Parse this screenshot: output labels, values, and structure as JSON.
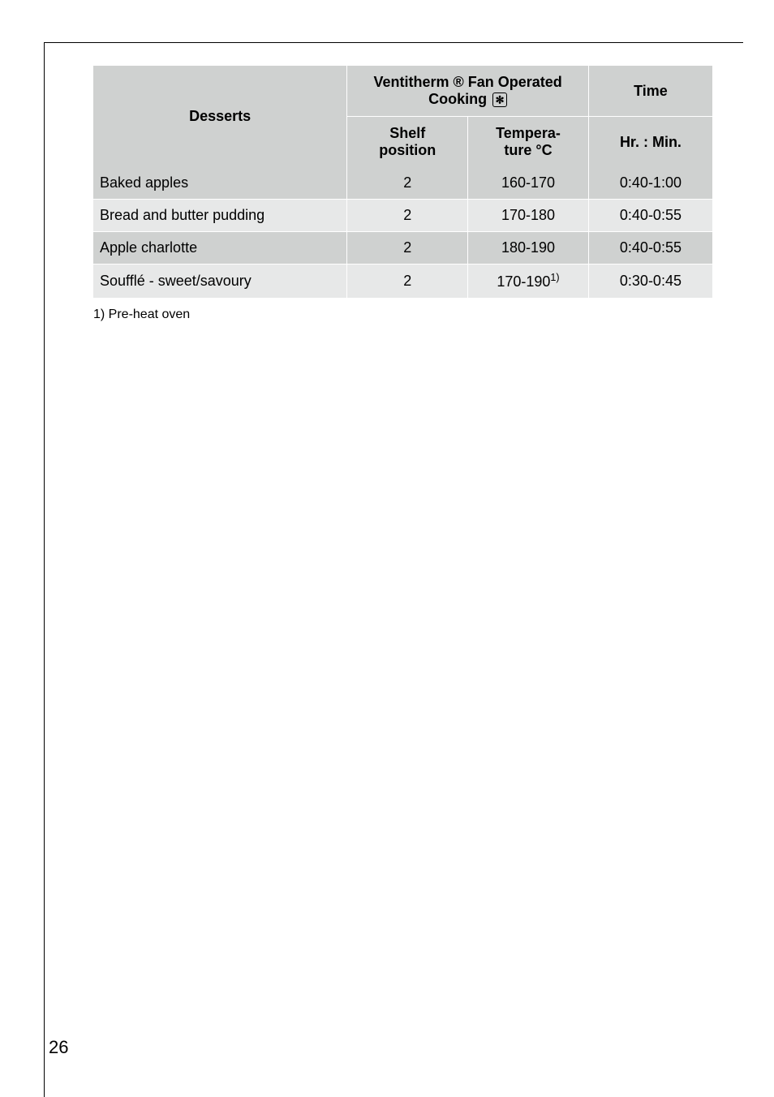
{
  "table": {
    "headers": {
      "desserts": "Desserts",
      "mode": "Ventitherm ® Fan Operated Cooking",
      "time": "Time",
      "shelf": "Shelf position",
      "temp": "Tempera-\nture °C",
      "hrmin": "Hr. : Min."
    },
    "rows": [
      {
        "name": "Baked apples",
        "shelf": "2",
        "temp": "160-170",
        "time": "0:40-1:00"
      },
      {
        "name": "Bread and butter pudding",
        "shelf": "2",
        "temp": "170-180",
        "time": "0:40-0:55"
      },
      {
        "name": "Apple charlotte",
        "shelf": "2",
        "temp": "180-190",
        "time": "0:40-0:55"
      },
      {
        "name": "Soufflé - sweet/savoury",
        "shelf": "2",
        "temp_base": "170-190",
        "temp_sup": "1)",
        "time": "0:30-0:45"
      }
    ]
  },
  "footnote": "1) Pre-heat oven",
  "page_number": "26",
  "colors": {
    "dark_gray": "#cfd1d0",
    "light_gray": "#e7e8e8",
    "border": "#ffffff",
    "text": "#000000"
  }
}
